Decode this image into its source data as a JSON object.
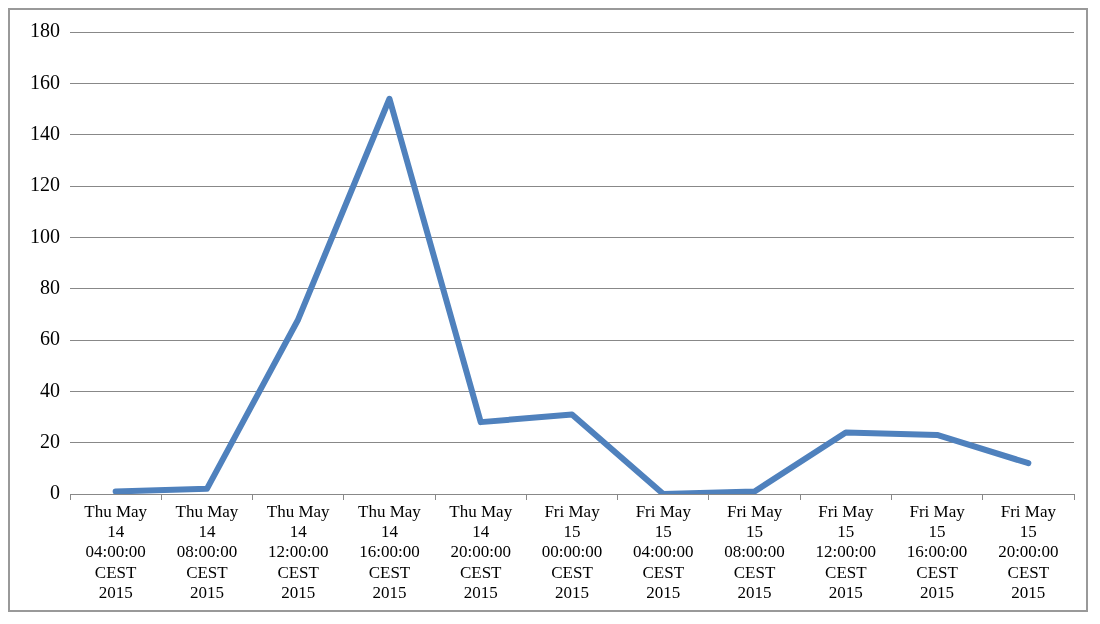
{
  "chart_data": {
    "type": "line",
    "categories": [
      "Thu May 14 04:00:00 CEST 2015",
      "Thu May 14 08:00:00 CEST 2015",
      "Thu May 14 12:00:00 CEST 2015",
      "Thu May 14 16:00:00 CEST 2015",
      "Thu May 14 20:00:00 CEST 2015",
      "Fri May 15 00:00:00 CEST 2015",
      "Fri May 15 04:00:00 CEST 2015",
      "Fri May 15 08:00:00 CEST 2015",
      "Fri May 15 12:00:00 CEST 2015",
      "Fri May 15 16:00:00 CEST 2015",
      "Fri May 15 20:00:00 CEST 2015"
    ],
    "values": [
      1,
      2,
      68,
      154,
      28,
      31,
      0,
      1,
      24,
      23,
      12
    ],
    "color": "#4f81bd",
    "ylim": [
      0,
      180
    ],
    "yticks": [
      0,
      20,
      40,
      60,
      80,
      100,
      120,
      140,
      160,
      180
    ],
    "grid": "y",
    "legend": false,
    "marker": "none",
    "line_style": "solid"
  }
}
